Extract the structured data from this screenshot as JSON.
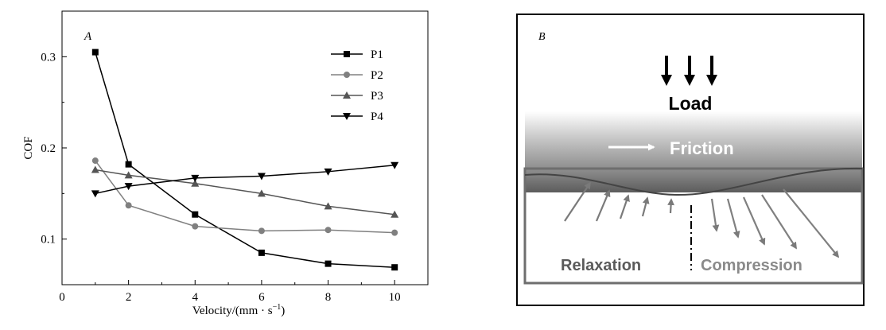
{
  "chart_data": {
    "type": "line",
    "panel_label": "A",
    "xlabel": "Velocity/(mm · s",
    "xlabel_sup": "−1",
    "xlabel_close": ")",
    "ylabel": "COF",
    "xlim": [
      0,
      11
    ],
    "ylim": [
      0.05,
      0.35
    ],
    "xticks": [
      "0",
      "2",
      "4",
      "6",
      "8",
      "10"
    ],
    "yticks": [
      "0.1",
      "0.2",
      "0.3"
    ],
    "legend_position": "top-right",
    "x": [
      1,
      2,
      4,
      6,
      8,
      10
    ],
    "series": [
      {
        "name": "P1",
        "marker": "square",
        "color": "#000000",
        "values": [
          0.305,
          0.182,
          0.127,
          0.085,
          0.073,
          0.069
        ]
      },
      {
        "name": "P2",
        "marker": "circle",
        "color": "#808080",
        "values": [
          0.186,
          0.137,
          0.114,
          0.109,
          0.11,
          0.107
        ]
      },
      {
        "name": "P3",
        "marker": "triangle-up",
        "color": "#555555",
        "values": [
          0.176,
          0.17,
          0.161,
          0.15,
          0.136,
          0.127
        ]
      },
      {
        "name": "P4",
        "marker": "triangle-down",
        "color": "#000000",
        "values": [
          0.15,
          0.158,
          0.167,
          0.169,
          0.174,
          0.181
        ]
      }
    ]
  },
  "diagram": {
    "panel_label": "B",
    "load_label": "Load",
    "friction_label": "Friction",
    "relaxation_label": "Relaxation",
    "compression_label": "Compression"
  }
}
